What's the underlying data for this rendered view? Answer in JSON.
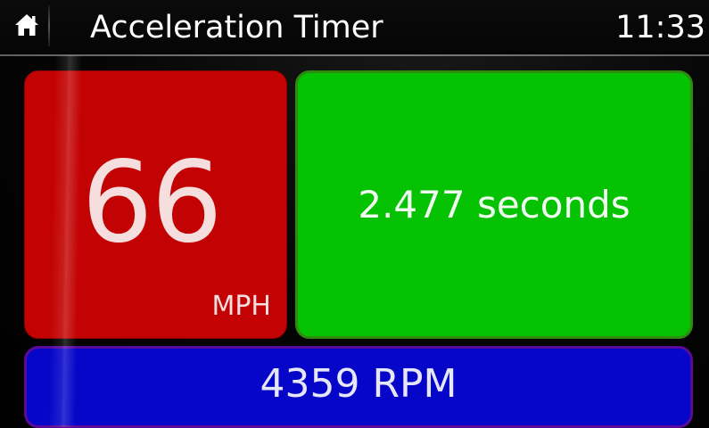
{
  "header": {
    "home_icon": "home-icon",
    "title": "Acceleration Timer",
    "clock": "11:33"
  },
  "speed": {
    "value": "66",
    "unit": "MPH"
  },
  "timer": {
    "value": "2.477 seconds"
  },
  "rpm": {
    "value": "4359 RPM"
  },
  "colors": {
    "speed_tile": "#c30303",
    "timer_tile": "#05c203",
    "rpm_tile": "#0606c9",
    "background": "#000000"
  }
}
